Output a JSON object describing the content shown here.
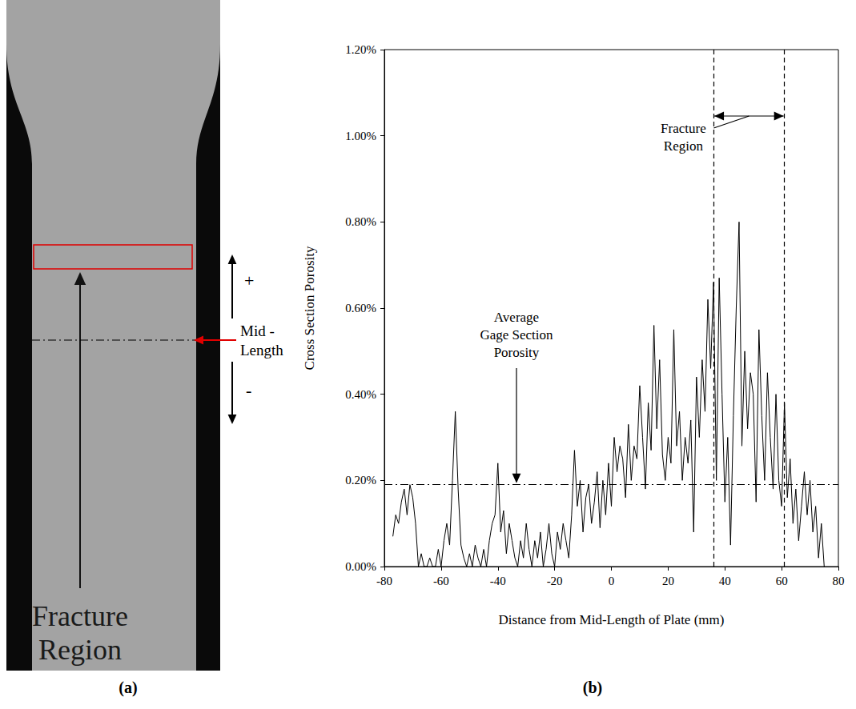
{
  "chart_data": {
    "type": "line",
    "panel_label": "(b)",
    "x_label": "Distance from Mid-Length of Plate (mm)",
    "y_label": "Cross Section Porosity",
    "color": "#000000",
    "grid": false,
    "xlim": [
      -80,
      80
    ],
    "xticks": [
      -80,
      -60,
      -40,
      -20,
      0,
      20,
      40,
      60,
      80
    ],
    "ylim": [
      0,
      1.2
    ],
    "yticks": [
      {
        "value": 0,
        "label": "0.00%"
      },
      {
        "value": 0.2,
        "label": "0.20%"
      },
      {
        "value": 0.4,
        "label": "0.40%"
      },
      {
        "value": 0.6,
        "label": "0.60%"
      },
      {
        "value": 0.8,
        "label": "0.80%"
      },
      {
        "value": 1.0,
        "label": "1.00%"
      },
      {
        "value": 1.2,
        "label": "1.20%"
      }
    ],
    "x": [
      -77,
      -76,
      -75,
      -74,
      -73,
      -72,
      -71,
      -70,
      -69,
      -68,
      -67,
      -66,
      -65,
      -64,
      -63,
      -62,
      -61,
      -60,
      -59,
      -58,
      -57,
      -56,
      -55,
      -54,
      -53,
      -52,
      -51,
      -50,
      -49,
      -48,
      -47,
      -46,
      -45,
      -44,
      -43,
      -42,
      -41,
      -40,
      -39,
      -38,
      -37,
      -36,
      -35,
      -34,
      -33,
      -32,
      -31,
      -30,
      -29,
      -28,
      -27,
      -26,
      -25,
      -24,
      -23,
      -22,
      -21,
      -20,
      -19,
      -18,
      -17,
      -16,
      -15,
      -14,
      -13,
      -12,
      -11,
      -10,
      -9,
      -8,
      -7,
      -6,
      -5,
      -4,
      -3,
      -2,
      -1,
      0,
      1,
      2,
      3,
      4,
      5,
      6,
      7,
      8,
      9,
      10,
      11,
      12,
      13,
      14,
      15,
      16,
      17,
      18,
      19,
      20,
      21,
      22,
      23,
      24,
      25,
      26,
      27,
      28,
      29,
      30,
      31,
      32,
      33,
      34,
      35,
      36,
      37,
      38,
      39,
      40,
      41,
      42,
      43,
      44,
      45,
      46,
      47,
      48,
      49,
      50,
      51,
      52,
      53,
      54,
      55,
      56,
      57,
      58,
      59,
      60,
      61,
      62,
      63,
      64,
      65,
      66,
      67,
      68,
      69,
      70,
      71,
      72,
      73,
      74,
      75
    ],
    "values": [
      0.07,
      0.12,
      0.1,
      0.15,
      0.18,
      0.12,
      0.19,
      0.16,
      0.1,
      0.0,
      0.03,
      0.0,
      0.0,
      0.02,
      0.0,
      0.0,
      0.04,
      0.0,
      0.06,
      0.1,
      0.05,
      0.2,
      0.36,
      0.18,
      0.05,
      0.02,
      0.0,
      0.03,
      0.0,
      0.05,
      0.02,
      0.0,
      0.04,
      0.0,
      0.06,
      0.1,
      0.12,
      0.24,
      0.08,
      0.13,
      0.03,
      0.1,
      0.06,
      0.02,
      0.0,
      0.06,
      0.02,
      0.1,
      0.04,
      0.0,
      0.06,
      0.02,
      0.08,
      0.0,
      0.04,
      0.1,
      0.03,
      0.0,
      0.08,
      0.04,
      0.1,
      0.06,
      0.02,
      0.12,
      0.27,
      0.14,
      0.2,
      0.08,
      0.16,
      0.19,
      0.1,
      0.15,
      0.22,
      0.09,
      0.2,
      0.12,
      0.24,
      0.14,
      0.3,
      0.22,
      0.28,
      0.25,
      0.16,
      0.33,
      0.2,
      0.28,
      0.25,
      0.42,
      0.3,
      0.18,
      0.38,
      0.27,
      0.56,
      0.32,
      0.48,
      0.26,
      0.2,
      0.3,
      0.24,
      0.55,
      0.28,
      0.36,
      0.2,
      0.3,
      0.24,
      0.34,
      0.08,
      0.44,
      0.3,
      0.48,
      0.36,
      0.62,
      0.46,
      0.66,
      0.2,
      0.67,
      0.4,
      0.15,
      0.3,
      0.05,
      0.35,
      0.6,
      0.8,
      0.28,
      0.5,
      0.32,
      0.45,
      0.4,
      0.15,
      0.55,
      0.35,
      0.2,
      0.45,
      0.3,
      0.18,
      0.4,
      0.2,
      0.14,
      0.38,
      0.16,
      0.25,
      0.1,
      0.18,
      0.06,
      0.14,
      0.22,
      0.12,
      0.2,
      0.08,
      0.14,
      0.02,
      0.1,
      0.0
    ],
    "reference_line": {
      "label": "Average Gage Section Porosity",
      "y": 0.19
    },
    "region": {
      "label": "Fracture Region",
      "x": [
        36,
        61
      ]
    }
  },
  "specimen_image": {
    "panel_label": "(a)",
    "region_label": "Fracture Region",
    "reference_label": "Mid - Length",
    "up_label": "+",
    "down_label": "-"
  }
}
